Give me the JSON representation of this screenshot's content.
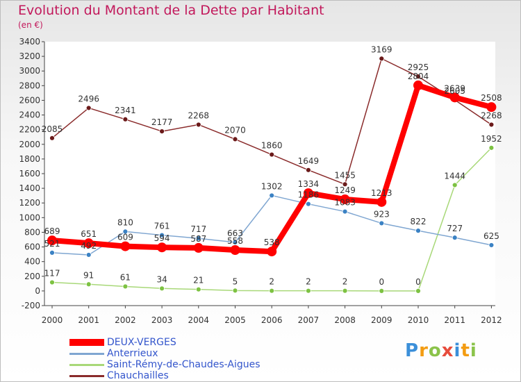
{
  "title": "Evolution du Montant de la Dette par Habitant",
  "unit_label": "(en €)",
  "logo": {
    "letters": [
      "P",
      "r",
      "o",
      "x",
      "i",
      "t",
      "i"
    ],
    "colors": [
      "#3b8fd9",
      "#f39c12",
      "#8bc34a",
      "#e74c3c",
      "#3b8fd9",
      "#f39c12",
      "#8bc34a"
    ]
  },
  "chart_data": {
    "type": "line",
    "title": "Evolution du Montant de la Dette par Habitant",
    "ylabel": "(en €)",
    "xlabel": "",
    "x": [
      "2000",
      "2001",
      "2002",
      "2003",
      "2004",
      "2005",
      "2006",
      "2007",
      "2008",
      "2009",
      "2010",
      "2011",
      "2012"
    ],
    "ylim": [
      -200,
      3400
    ],
    "yticks": [
      "-200",
      "0",
      "200",
      "400",
      "600",
      "800",
      "1000",
      "1200",
      "1400",
      "1600",
      "1800",
      "2000",
      "2200",
      "2400",
      "2600",
      "2800",
      "3000",
      "3200",
      "3400"
    ],
    "grid": false,
    "legend_position": "bottom-left",
    "series": [
      {
        "name": "DEUX-VERGES",
        "color": "#ff0000",
        "point_color": "#cc0000",
        "width": 8,
        "values": [
          689,
          651,
          609,
          594,
          587,
          558,
          538,
          1334,
          1249,
          1213,
          2804,
          2639,
          2508
        ]
      },
      {
        "name": "Anterrieux",
        "color": "#7fa6d1",
        "point_color": "#3b82c4",
        "width": 1.5,
        "values": [
          521,
          492,
          810,
          761,
          717,
          663,
          1302,
          1186,
          1083,
          923,
          822,
          727,
          625
        ]
      },
      {
        "name": "Saint-Rémy-de-Chaudes-Aigues",
        "color": "#a8d878",
        "point_color": "#7dc242",
        "width": 1.5,
        "values": [
          117,
          91,
          61,
          34,
          21,
          5,
          2,
          2,
          2,
          0,
          0,
          1444,
          1952
        ]
      },
      {
        "name": "Chauchailles",
        "color": "#8a2b2b",
        "point_color": "#6b1a1a",
        "width": 1.5,
        "values": [
          2085,
          2496,
          2341,
          2177,
          2268,
          2070,
          1860,
          1649,
          1455,
          3169,
          2925,
          2605,
          2268
        ]
      }
    ]
  }
}
